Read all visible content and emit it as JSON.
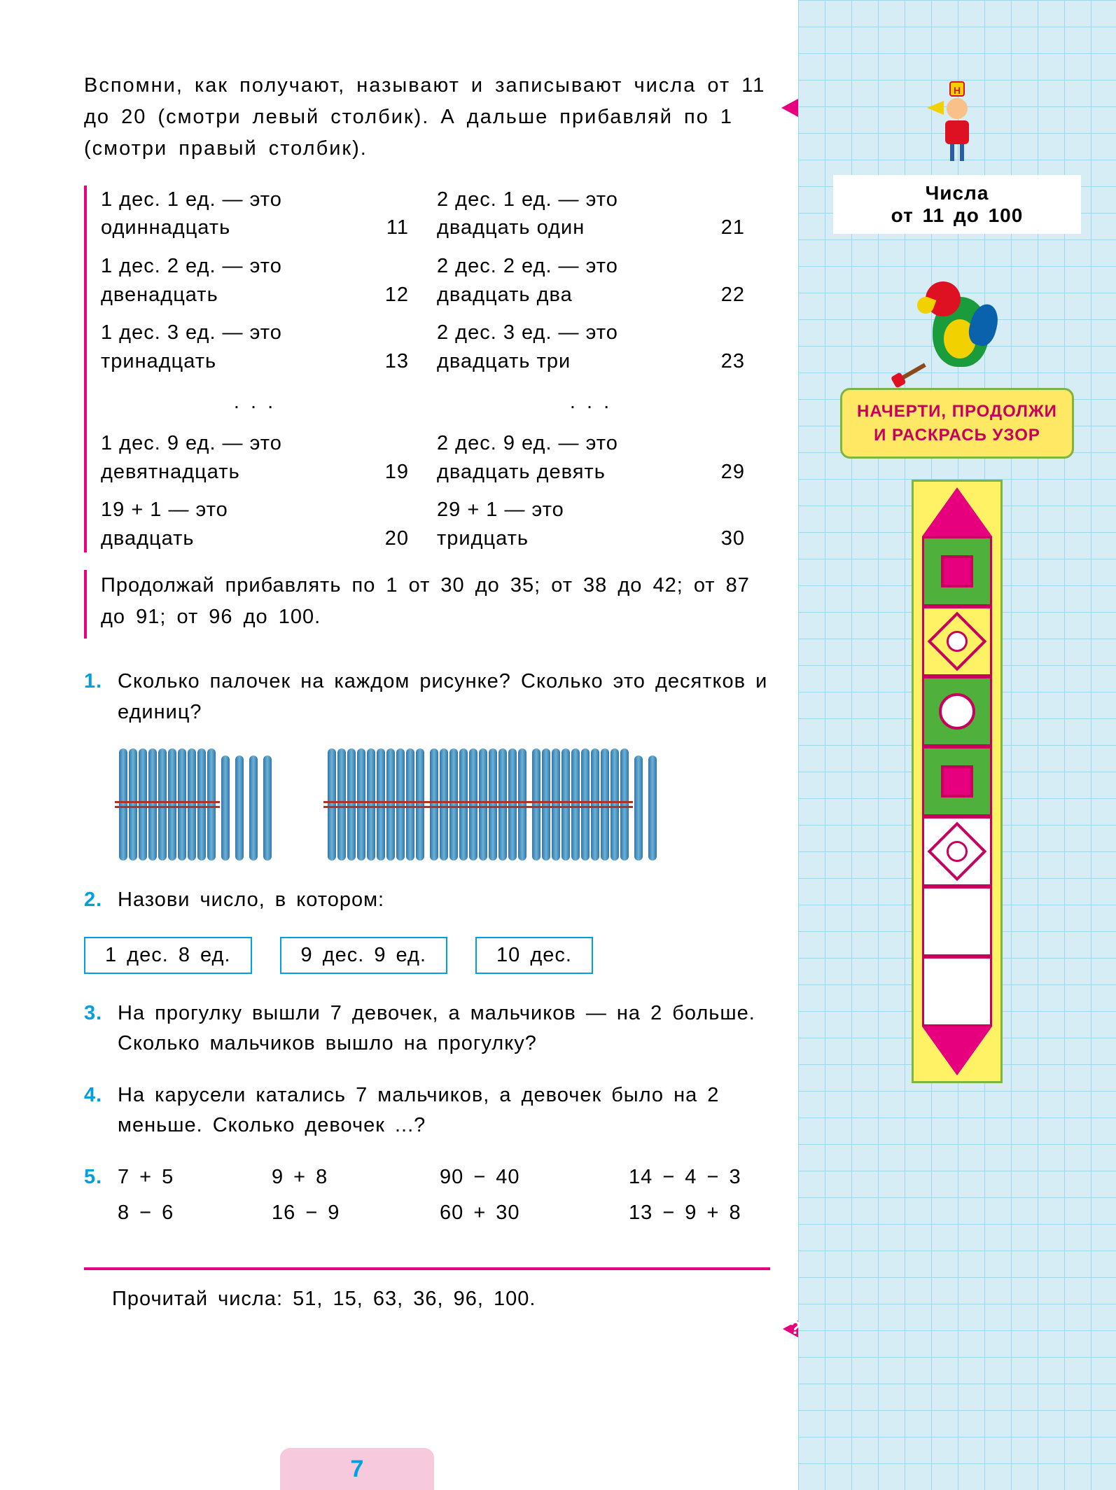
{
  "intro_text": "Вспомни, как получают, называют и записывают числа от 11 до 20 (смотри левый столбик). А дальше прибавляй по 1 (смотри правый столбик).",
  "number_table": {
    "left": [
      {
        "top": "1 дес. 1 ед. — это",
        "word": "одиннадцать",
        "num": "11"
      },
      {
        "top": "1 дес. 2 ед. — это",
        "word": "двенадцать",
        "num": "12"
      },
      {
        "top": "1 дес. 3 ед. — это",
        "word": "тринадцать",
        "num": "13"
      },
      {
        "top": "1 дес. 9 ед. — это",
        "word": "девятнадцать",
        "num": "19"
      },
      {
        "top": "19 + 1 — это",
        "word": "двадцать",
        "num": "20"
      }
    ],
    "right": [
      {
        "top": "2 дес. 1 ед. — это",
        "word": "двадцать один",
        "num": "21"
      },
      {
        "top": "2 дес. 2 ед. — это",
        "word": "двадцать два",
        "num": "22"
      },
      {
        "top": "2 дес. 3 ед. — это",
        "word": "двадцать три",
        "num": "23"
      },
      {
        "top": "2 дес. 9 ед. — это",
        "word": "двадцать девять",
        "num": "29"
      },
      {
        "top": "29 + 1 — это",
        "word": "тридцать",
        "num": "30"
      }
    ],
    "ellipsis": ". . ."
  },
  "continue_text": "Продолжай прибавлять по 1 от 30 до 35; от 38 до 42; от 87 до 91; от 96 до 100.",
  "tasks": {
    "t1": {
      "num": "1.",
      "text": "Сколько палочек на каждом рисунке? Сколько это десятков и единиц?"
    },
    "t2": {
      "num": "2.",
      "text": "Назови число, в котором:"
    },
    "t2_boxes": [
      "1 дес. 8 ед.",
      "9 дес. 9 ед.",
      "10 дес."
    ],
    "t3": {
      "num": "3.",
      "text": "На прогулку вышли 7 девочек, а мальчиков — на 2 больше. Сколько мальчиков вышло на прогулку?"
    },
    "t4": {
      "num": "4.",
      "text": "На карусели катались 7 мальчиков, а девочек было на 2 меньше. Сколько девочек ...?"
    },
    "t5": {
      "num": "5.",
      "cols": [
        [
          "7 + 5",
          "8 − 6"
        ],
        [
          "9 + 8",
          "16 − 9"
        ],
        [
          "90 − 40",
          "60 + 30"
        ],
        [
          "14 − 4 − 3",
          "13 − 9 + 8"
        ]
      ]
    }
  },
  "sticks": {
    "group1": {
      "bundles": 1,
      "singles": 4
    },
    "group2": {
      "bundles": 3,
      "singles": 2
    }
  },
  "read_numbers": "Прочитай числа: 51, 15, 63, 36, 96, 100.",
  "page_number": "7",
  "q_mark": "?",
  "sidebar": {
    "h_badge": "Н",
    "title_line1": "Числа",
    "title_line2": "от 11 до 100",
    "sign": "НАЧЕРТИ, ПРОДОЛЖИ И РАСКРАСЬ УЗОР"
  },
  "colors": {
    "pink": "#e6007e",
    "blue": "#009fe3",
    "grid": "#6fc5e8",
    "side_bg": "#d6edf5",
    "yellow": "#ffe863",
    "green": "#4fb03c"
  }
}
